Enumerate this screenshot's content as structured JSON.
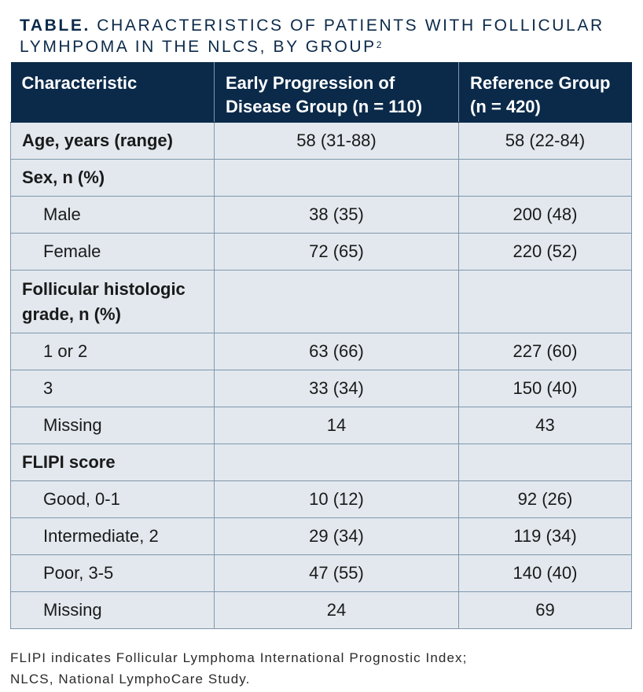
{
  "title": {
    "lead": "TABLE",
    "dot": ".",
    "text": " CHARACTERISTICS OF PATIENTS WITH FOLLICULAR LYMHPOMA IN THE NLCS, BY GROUP",
    "ref": "2"
  },
  "table": {
    "headers": [
      "Characteristic",
      "Early Progression of Disease Group (n = 110)",
      "Reference Group (n = 420)"
    ],
    "rows": [
      {
        "label": "Age, years (range)",
        "early": "58 (31-88)",
        "reference": "58 (22-84)"
      },
      {
        "label": "Sex, n (%)",
        "early": "",
        "reference": ""
      },
      {
        "label": "Male",
        "early": "38 (35)",
        "reference": "200 (48)"
      },
      {
        "label": "Female",
        "early": "72 (65)",
        "reference": "220 (52)"
      },
      {
        "label": "Follicular histologic grade, n (%)",
        "early": "",
        "reference": ""
      },
      {
        "label": "1 or 2",
        "early": "63 (66)",
        "reference": "227 (60)"
      },
      {
        "label": "3",
        "early": "33 (34)",
        "reference": "150 (40)"
      },
      {
        "label": "Missing",
        "early": "14",
        "reference": "43"
      },
      {
        "label": "FLIPI score",
        "early": "",
        "reference": ""
      },
      {
        "label": "Good, 0-1",
        "early": "10 (12)",
        "reference": "92 (26)"
      },
      {
        "label": "Intermediate, 2",
        "early": "29 (34)",
        "reference": "119 (34)"
      },
      {
        "label": "Poor, 3-5",
        "early": "47 (55)",
        "reference": "140 (40)"
      },
      {
        "label": "Missing",
        "early": "24",
        "reference": "69"
      }
    ]
  },
  "footnote": {
    "line1": "FLIPI indicates Follicular Lymphoma International Prognostic Index;",
    "line2": "NLCS, National LymphoCare Study."
  },
  "colors": {
    "header_bg": "#0b2a4a",
    "cell_bg": "#e2e8ee",
    "border": "#7f97ad"
  }
}
